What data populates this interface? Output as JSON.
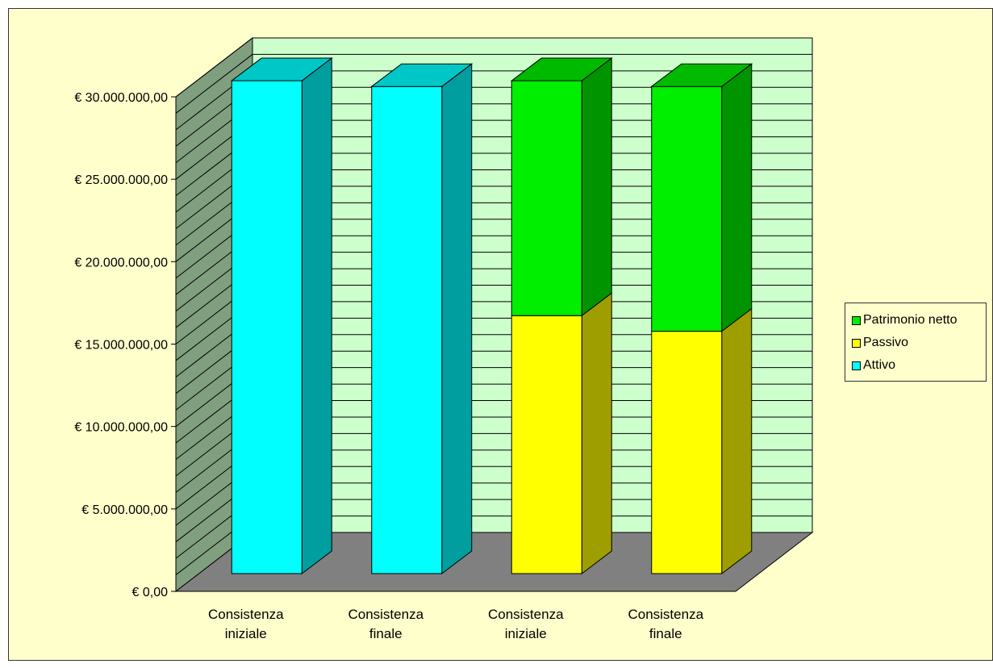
{
  "chart_data": {
    "type": "bar",
    "stacked": true,
    "three_d": true,
    "title": "",
    "xlabel": "",
    "ylabel": "",
    "categories": [
      [
        "Consistenza",
        "iniziale"
      ],
      [
        "Consistenza",
        "finale"
      ],
      [
        "Consistenza",
        "iniziale"
      ],
      [
        "Consistenza",
        "finale"
      ]
    ],
    "series": [
      {
        "name": "Attivo",
        "color": "#00ffff",
        "values": [
          29900000,
          29550000,
          0,
          0
        ]
      },
      {
        "name": "Passivo",
        "color": "#ffff00",
        "values": [
          0,
          0,
          15650000,
          14700000
        ]
      },
      {
        "name": "Patrimonio netto",
        "color": "#00ee00",
        "values": [
          0,
          0,
          14250000,
          14850000
        ]
      }
    ],
    "ylim": [
      0,
      30000000
    ],
    "yticks": [
      {
        "value": 0,
        "label": "€ 0,00"
      },
      {
        "value": 5000000,
        "label": "€ 5.000.000,00"
      },
      {
        "value": 10000000,
        "label": "€ 10.000.000,00"
      },
      {
        "value": 15000000,
        "label": "€ 15.000.000,00"
      },
      {
        "value": 20000000,
        "label": "€ 20.000.000,00"
      },
      {
        "value": 25000000,
        "label": "€ 25.000.000,00"
      },
      {
        "value": 30000000,
        "label": "€ 30.000.000,00"
      }
    ],
    "minor_grid_step": 1000000,
    "grid": true,
    "legend": {
      "position": "right",
      "order": [
        "Patrimonio netto",
        "Passivo",
        "Attivo"
      ]
    },
    "colors": {
      "background": "#ffffcc",
      "back_wall": "#ccffcc",
      "side_wall": "#7f9f7f",
      "floor": "#808080"
    }
  }
}
